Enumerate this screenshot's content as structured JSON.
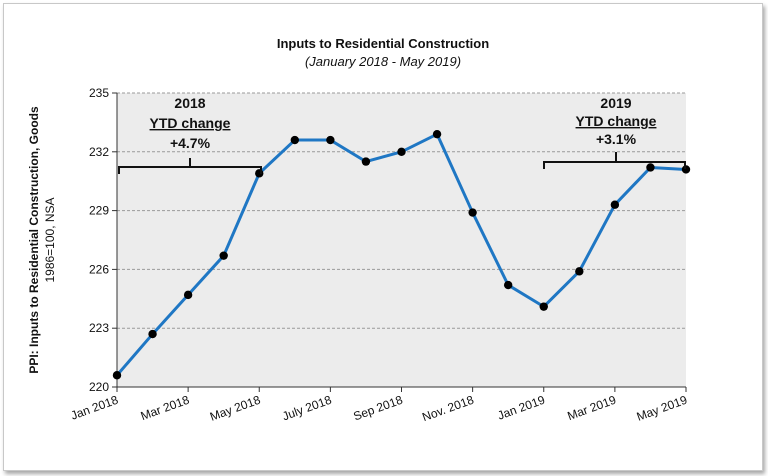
{
  "chart_data": {
    "type": "line",
    "title": "Inputs to Residential Construction",
    "subtitle": "(January 2018 - May 2019)",
    "ylabel": "PPI: Inputs to Residential Construction, Goods",
    "ylabel_sub": "1986=100, NSA",
    "ylim": [
      220,
      235
    ],
    "yticks": [
      220,
      223,
      226,
      229,
      232,
      235
    ],
    "xtick_labels": [
      "Jan 2018",
      "Mar 2018",
      "May 2018",
      "July 2018",
      "Sep 2018",
      "Nov. 2018",
      "Jan 2019",
      "Mar 2019",
      "May 2019"
    ],
    "x": [
      "2018-01",
      "2018-02",
      "2018-03",
      "2018-04",
      "2018-05",
      "2018-06",
      "2018-07",
      "2018-08",
      "2018-09",
      "2018-10",
      "2018-11",
      "2018-12",
      "2019-01",
      "2019-02",
      "2019-03",
      "2019-04",
      "2019-05"
    ],
    "series": [
      {
        "values": [
          220.6,
          222.7,
          224.7,
          226.7,
          230.9,
          232.6,
          232.6,
          231.5,
          232.0,
          232.9,
          228.9,
          225.2,
          224.1,
          225.9,
          229.3,
          231.2,
          231.1
        ]
      }
    ],
    "colors": {
      "line": "#1f77c4",
      "marker": "#000000",
      "plot_bg": "#ececec",
      "grid": "#9a9a9a"
    },
    "grid": true,
    "annotations": [
      {
        "year": "2018",
        "label": "YTD change",
        "value": "+4.7%"
      },
      {
        "year": "2019",
        "label": "YTD change",
        "value": "+3.1%"
      }
    ]
  }
}
